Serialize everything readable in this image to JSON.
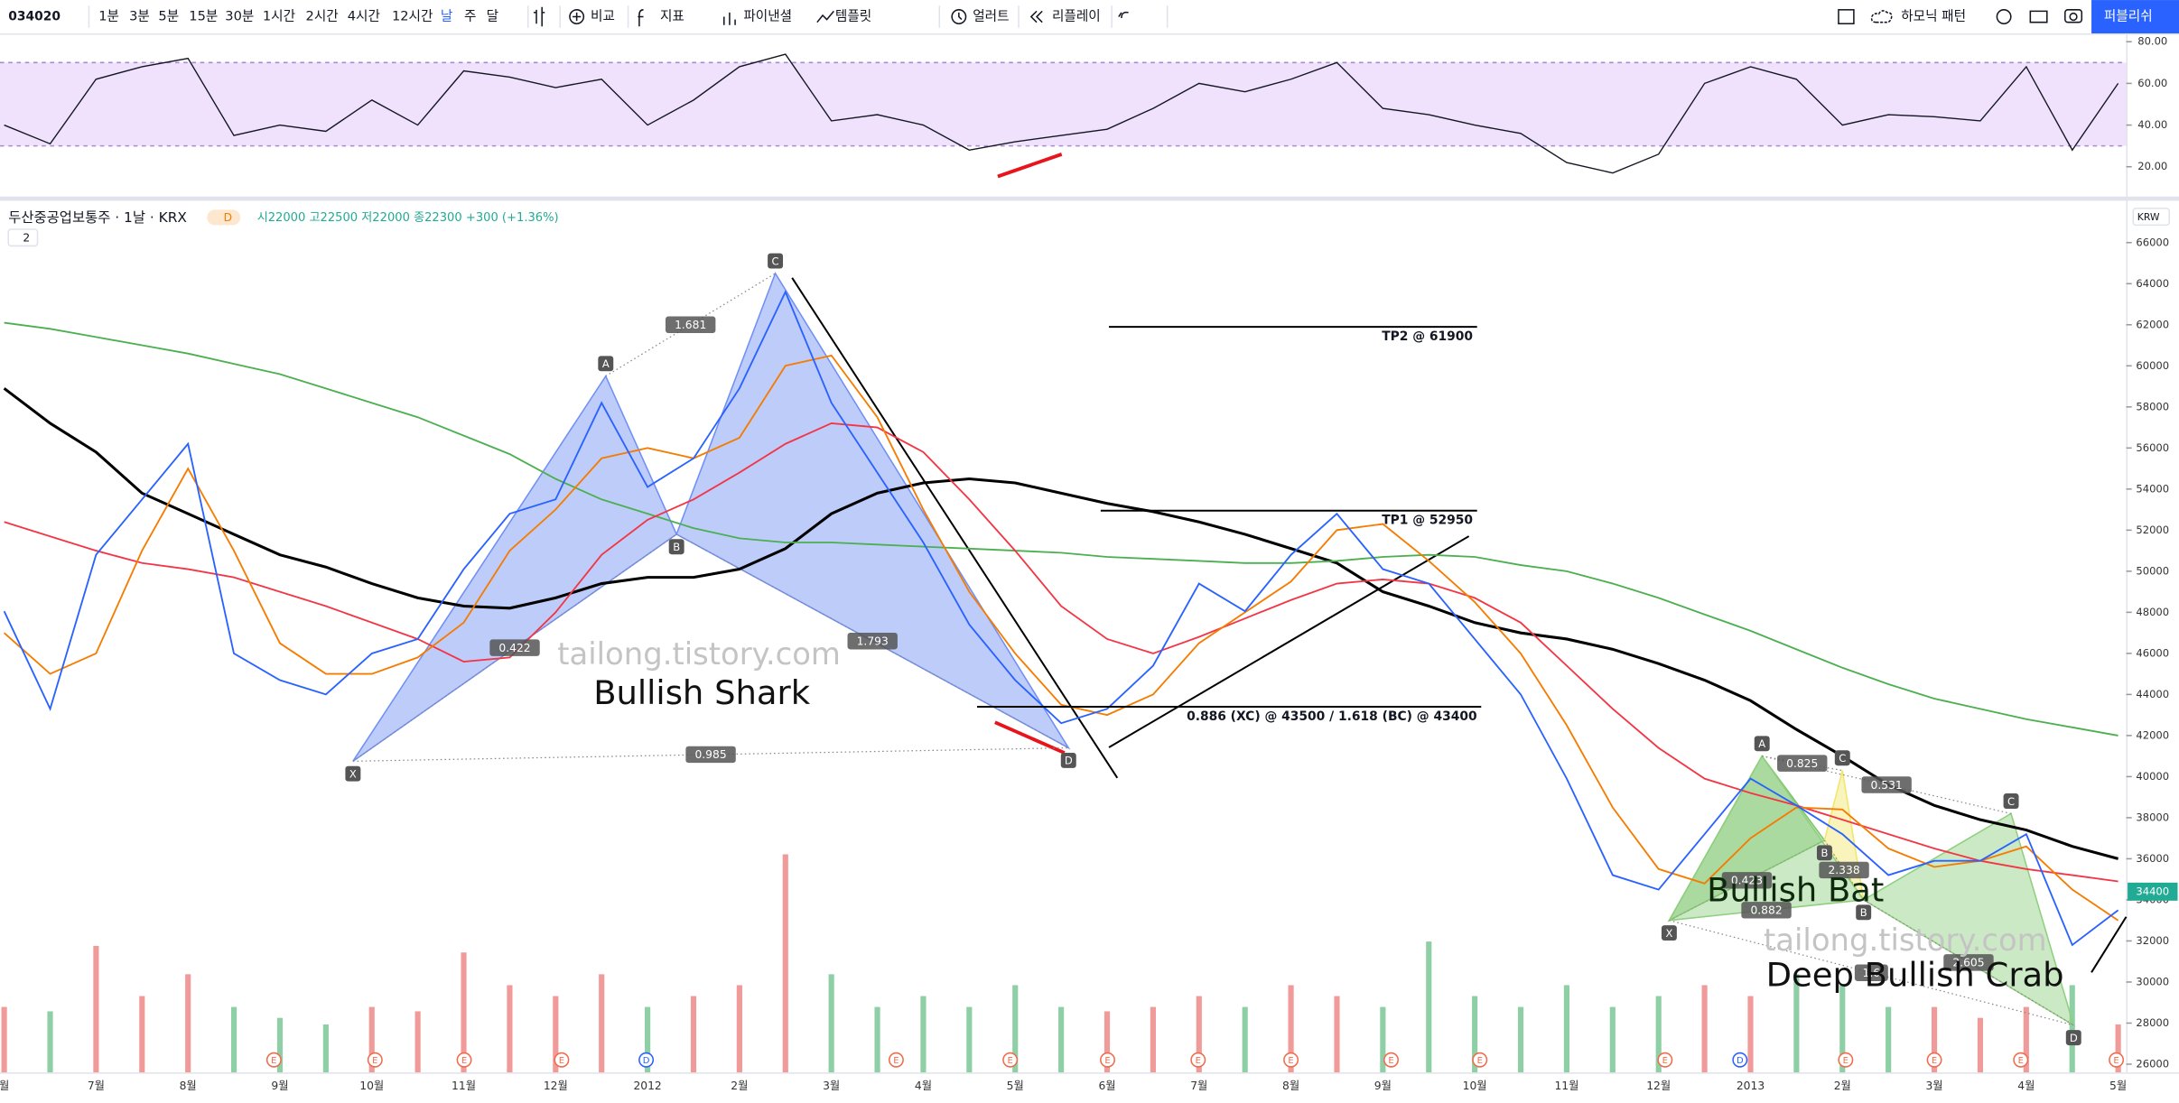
{
  "toolbar": {
    "symbol": "034020",
    "items": [
      "1분",
      "3분",
      "5분",
      "15분",
      "30분",
      "1시간",
      "2시간",
      "4시간",
      "12시간",
      "날",
      "주",
      "달",
      "비교",
      "지표",
      "파이낸셜",
      "템플릿",
      "얼러트",
      "리플레이",
      "하모닉 패턴",
      "퍼블리쉬"
    ]
  },
  "legend": {
    "title": "두산중공업보통주 · 1날 · KRX",
    "badge": "D",
    "ohlc": "시22000 고22500 저22000 종22300 +300 (+1.36%)",
    "collapse": "2",
    "currency": "KRW"
  },
  "watermark": "tailong.tistory.com",
  "chart_data": [
    {
      "type": "line",
      "color": "#131722",
      "band": [
        30,
        70
      ],
      "band_color": "#f0e2fc",
      "ylim": [
        10,
        84
      ],
      "yticks": [
        {
          "value": 80,
          "label": "80.00"
        },
        {
          "value": 60,
          "label": "60.00"
        },
        {
          "value": 40,
          "label": "40.00"
        },
        {
          "value": 20,
          "label": "20.00"
        }
      ],
      "values": [
        40,
        31,
        62,
        68,
        72,
        35,
        40,
        37,
        52,
        40,
        66,
        63,
        58,
        62,
        40,
        52,
        68,
        74,
        42,
        45,
        40,
        28,
        32,
        35,
        38,
        48,
        60,
        56,
        62,
        70,
        48,
        45,
        40,
        36,
        22,
        17,
        26,
        60,
        68,
        62,
        40,
        45,
        44,
        42,
        68,
        28,
        60
      ]
    },
    {
      "type": "line",
      "grid": false,
      "ylim": [
        25600,
        67800
      ],
      "yticks": [
        26000,
        28000,
        30000,
        32000,
        34000,
        36000,
        38000,
        40000,
        42000,
        44000,
        46000,
        48000,
        50000,
        52000,
        54000,
        56000,
        58000,
        60000,
        62000,
        64000,
        66000
      ],
      "categories": [
        "월",
        null,
        "7월",
        null,
        "8월",
        null,
        "9월",
        null,
        "10월",
        null,
        "11월",
        null,
        "12월",
        null,
        "2012",
        null,
        "2월",
        null,
        "3월",
        null,
        "4월",
        null,
        "5월",
        null,
        "6월",
        null,
        "7월",
        null,
        "8월",
        null,
        "9월",
        null,
        "10월",
        null,
        "11월",
        null,
        "12월",
        null,
        "2013",
        null,
        "2월",
        null,
        "3월",
        null,
        "4월",
        null,
        "5월"
      ],
      "last_price": 34400,
      "last_color": "#22ab94",
      "series": [
        {
          "color": "#000000",
          "width": 2,
          "values": [
            58900,
            57200,
            55800,
            53800,
            52800,
            51800,
            50800,
            50200,
            49400,
            48700,
            48300,
            48200,
            48700,
            49400,
            49700,
            49700,
            50100,
            51100,
            52800,
            53800,
            54300,
            54500,
            54300,
            53800,
            53300,
            52900,
            52400,
            51800,
            51100,
            50400,
            49000,
            48300,
            47500,
            47000,
            46700,
            46200,
            45500,
            44700,
            43700,
            42300,
            41000,
            39600,
            38600,
            37900,
            37400,
            36600,
            36000
          ]
        },
        {
          "color": "#4caf50",
          "width": 1.2,
          "values": [
            62100,
            61800,
            61400,
            61000,
            60600,
            60100,
            59600,
            58900,
            58200,
            57500,
            56600,
            55700,
            54500,
            53500,
            52800,
            52100,
            51600,
            51400,
            51400,
            51300,
            51200,
            51100,
            51000,
            50900,
            50700,
            50600,
            50500,
            50400,
            50400,
            50500,
            50700,
            50800,
            50700,
            50300,
            50000,
            49400,
            48700,
            47900,
            47100,
            46200,
            45300,
            44500,
            43800,
            43300,
            42800,
            42400,
            42000
          ]
        },
        {
          "color": "#f23645",
          "width": 1.2,
          "values": [
            52400,
            51700,
            51000,
            50400,
            50100,
            49700,
            49000,
            48300,
            47500,
            46700,
            45600,
            45800,
            48000,
            50800,
            52500,
            53500,
            54800,
            56200,
            57200,
            57000,
            55800,
            53500,
            51000,
            48300,
            46700,
            46000,
            46800,
            47700,
            48600,
            49400,
            49600,
            49400,
            48700,
            47500,
            45400,
            43300,
            41400,
            39900,
            39200,
            38600,
            37900,
            37200,
            36500,
            35900,
            35500,
            35200,
            34900
          ]
        },
        {
          "color": "#f57c00",
          "width": 1.2,
          "values": [
            47000,
            45000,
            46000,
            51000,
            55000,
            51000,
            46500,
            45000,
            45000,
            45800,
            47500,
            51000,
            53000,
            55500,
            56000,
            55500,
            56500,
            60000,
            60500,
            57500,
            53000,
            49000,
            46000,
            43500,
            43000,
            44000,
            46500,
            48000,
            49500,
            52000,
            52300,
            50500,
            48500,
            46000,
            42500,
            38500,
            35500,
            34800,
            37000,
            38500,
            38400,
            36500,
            35600,
            35900,
            36600,
            34500,
            33000
          ]
        },
        {
          "color": "#2962ff",
          "width": 1.2,
          "values": [
            48050,
            43300,
            50800,
            53500,
            56200,
            46000,
            44700,
            44000,
            46000,
            46700,
            50100,
            52800,
            53500,
            58200,
            54100,
            55500,
            58900,
            63600,
            58200,
            54800,
            51400,
            47400,
            44700,
            42600,
            43300,
            45400,
            49400,
            48050,
            50800,
            52800,
            50100,
            49400,
            46700,
            44000,
            39900,
            35200,
            34500,
            37200,
            39900,
            38600,
            37200,
            35200,
            35900,
            35900,
            37200,
            31800,
            33500
          ]
        }
      ],
      "levels": [
        {
          "label": "TP2 @ 61900",
          "value": 61900,
          "from": 24.04,
          "to": 32.05
        },
        {
          "label": "TP1 @ 52950",
          "value": 52950,
          "from": 23.86,
          "to": 32.05
        },
        {
          "label": "0.886 (XC) @ 43500 / 1.618 (BC) @ 43400",
          "value": 43400,
          "from": 21.17,
          "to": 32.14
        }
      ],
      "patterns": [
        {
          "name": "Bullish Shark",
          "colors": [
            "#6f8ff5",
            "#6f8ff5"
          ],
          "points": [
            {
              "label": "X",
              "x": 7.59,
              "y": 40750
            },
            {
              "label": "A",
              "x": 13.09,
              "y": 59500
            },
            {
              "label": "B",
              "x": 14.63,
              "y": 51800
            },
            {
              "label": "C",
              "x": 16.78,
              "y": 64500
            },
            {
              "label": "D",
              "x": 23.16,
              "y": 41400
            }
          ],
          "ratios": [
            {
              "label": "1.681",
              "from": 1,
              "to": 3
            },
            {
              "label": "0.422",
              "from": 0,
              "to": 2
            },
            {
              "label": "1.793",
              "from": 2,
              "to": 4
            },
            {
              "label": "0.985",
              "from": 0,
              "to": 4
            }
          ]
        },
        {
          "name": "Bullish Bat",
          "colors": [
            "#7cc46a",
            "#f2e56b"
          ],
          "points": [
            {
              "label": "X",
              "x": 36.23,
              "y": 33000
            },
            {
              "label": "A",
              "x": 38.25,
              "y": 41000
            },
            {
              "label": "B",
              "x": 39.61,
              "y": 36900
            },
            {
              "label": "C",
              "x": 40.0,
              "y": 40300
            },
            {
              "label": null,
              "x": 40.46,
              "y": 34000
            }
          ],
          "ratios": [
            {
              "label": "0.825",
              "from": 1,
              "to": 3
            },
            {
              "label": "0.423",
              "from": 0,
              "to": 2
            },
            {
              "label": "2.338",
              "from": 2,
              "to": 4
            },
            {
              "label": "0.882",
              "from": 0,
              "to": 4
            }
          ]
        },
        {
          "name": "Deep Bullish Crab",
          "colors": [
            "#8fcf7f",
            "#8fcf7f"
          ],
          "points": [
            {
              "label": null,
              "x": 36.23,
              "y": 33000
            },
            {
              "label": null,
              "x": 38.25,
              "y": 41000
            },
            {
              "label": "B",
              "x": 40.46,
              "y": 34000
            },
            {
              "label": "C",
              "x": 43.67,
              "y": 38200
            },
            {
              "label": "D",
              "x": 45.03,
              "y": 27900
            }
          ],
          "ratios": [
            {
              "label": "0.531",
              "from": 1,
              "to": 3
            },
            {
              "label": "2.605",
              "from": 2,
              "to": 4
            },
            {
              "label": "1.6",
              "from": 0,
              "to": 4
            }
          ]
        }
      ],
      "events": [
        {
          "label": "E",
          "x": 5.87,
          "color": "#ef6c4d"
        },
        {
          "label": "E",
          "x": 8.07,
          "color": "#ef6c4d"
        },
        {
          "label": "E",
          "x": 10.01,
          "color": "#ef6c4d"
        },
        {
          "label": "E",
          "x": 12.13,
          "color": "#ef6c4d"
        },
        {
          "label": "D",
          "x": 13.97,
          "color": "#2962ff"
        },
        {
          "label": "E",
          "x": 19.41,
          "color": "#ef6c4d"
        },
        {
          "label": "E",
          "x": 21.89,
          "color": "#ef6c4d"
        },
        {
          "label": "E",
          "x": 24.01,
          "color": "#ef6c4d"
        },
        {
          "label": "E",
          "x": 25.98,
          "color": "#ef6c4d"
        },
        {
          "label": "E",
          "x": 28.0,
          "color": "#ef6c4d"
        },
        {
          "label": "E",
          "x": 30.18,
          "color": "#ef6c4d"
        },
        {
          "label": "E",
          "x": 32.11,
          "color": "#ef6c4d"
        },
        {
          "label": "E",
          "x": 36.14,
          "color": "#ef6c4d"
        },
        {
          "label": "D",
          "x": 37.77,
          "color": "#2962ff"
        },
        {
          "label": "E",
          "x": 40.07,
          "color": "#ef6c4d"
        },
        {
          "label": "E",
          "x": 42.0,
          "color": "#ef6c4d"
        },
        {
          "label": "E",
          "x": 43.88,
          "color": "#ef6c4d"
        },
        {
          "label": "E",
          "x": 45.96,
          "color": "#ef6c4d"
        }
      ]
    },
    {
      "type": "bar",
      "ylim": [
        0,
        100
      ],
      "up_color": "#f19a9a",
      "down_color": "#8fcfa6",
      "values": [
        30,
        28,
        58,
        35,
        45,
        30,
        25,
        22,
        30,
        28,
        55,
        40,
        35,
        45,
        30,
        35,
        40,
        100,
        45,
        30,
        35,
        30,
        40,
        30,
        28,
        30,
        35,
        30,
        40,
        35,
        30,
        60,
        35,
        30,
        40,
        30,
        35,
        40,
        35,
        45,
        40,
        30,
        30,
        25,
        30,
        40,
        22
      ]
    }
  ]
}
